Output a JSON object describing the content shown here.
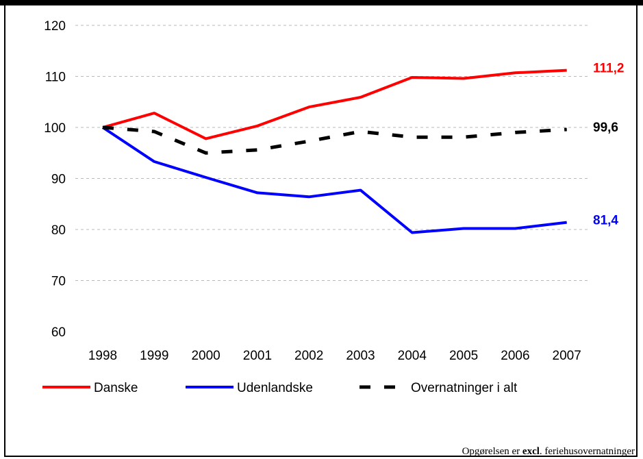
{
  "chart_data": {
    "type": "line",
    "title": "",
    "xlabel": "",
    "ylabel": "",
    "x": [
      "1998",
      "1999",
      "2000",
      "2001",
      "2002",
      "2003",
      "2004",
      "2005",
      "2006",
      "2007"
    ],
    "ylim": [
      60,
      120
    ],
    "yticks": [
      "60",
      "70",
      "80",
      "90",
      "100",
      "110",
      "120"
    ],
    "grid": true,
    "legend_position": "bottom",
    "series": [
      {
        "name": "Danske",
        "color": "#ff0000",
        "style": "solid",
        "values": [
          100,
          102.8,
          97.8,
          100.3,
          104.0,
          105.9,
          109.8,
          109.6,
          110.7,
          111.2
        ],
        "end_label": "111,2"
      },
      {
        "name": "Udenlandske",
        "color": "#0000ff",
        "style": "solid",
        "values": [
          100,
          93.3,
          90.2,
          87.2,
          86.4,
          87.7,
          79.4,
          80.2,
          80.2,
          81.4
        ],
        "end_label": "81,4"
      },
      {
        "name": "Overnatninger i alt",
        "color": "#000000",
        "style": "dashed",
        "values": [
          100,
          99.2,
          95.0,
          95.6,
          97.3,
          99.2,
          98.1,
          98.1,
          99.0,
          99.6
        ],
        "end_label": "99,6"
      }
    ]
  },
  "footnote": {
    "prefix": "Opgørelsen er ",
    "bold": "excl",
    "suffix": ". feriehusovernatninger"
  }
}
